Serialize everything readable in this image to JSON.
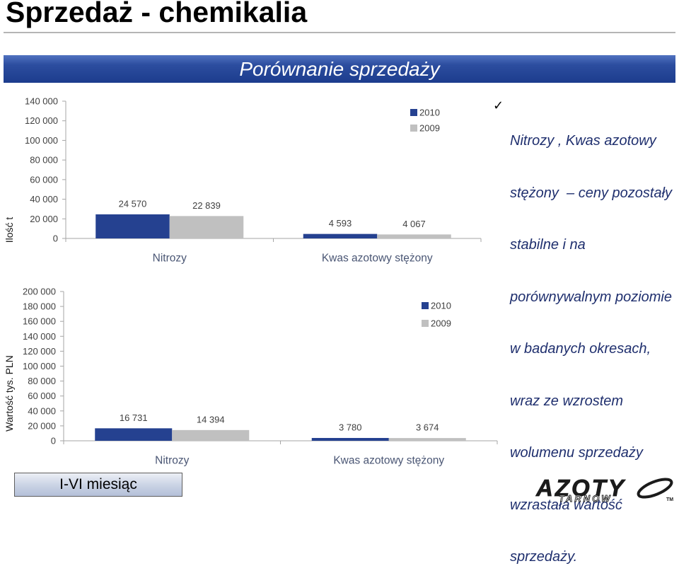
{
  "title": "Sprzedaż - chemikalia",
  "banner": {
    "text": "Porównanie sprzedaży"
  },
  "bullet": {
    "icon": "checkmark-icon",
    "check": "✓",
    "lines": [
      "Nitrozy , Kwas azotowy",
      "stężony  – ceny pozostały",
      "stabilne i na",
      "porównywalnym poziomie",
      "w badanych okresach,",
      "wraz ze wzrostem",
      "wolumenu sprzedaży",
      "wzrastała wartość",
      "sprzedaży."
    ]
  },
  "period_box": {
    "label": "I-VI miesiąc"
  },
  "logo": {
    "main": "AZOTY",
    "sub": "TARNÓW",
    "tm": "TM"
  },
  "colors": {
    "banner": "#2c4d9f",
    "bullet_text": "#1f2f6e",
    "series_2010": "#254190",
    "series_2009": "#c0c0c0"
  },
  "chart_data": [
    {
      "type": "bar",
      "ylabel": "Ilość t",
      "categories": [
        "Nitrozy",
        "Kwas azotowy stężony"
      ],
      "ylim": [
        0,
        140000
      ],
      "yticks": [
        0,
        20000,
        40000,
        60000,
        80000,
        100000,
        120000,
        140000
      ],
      "ytick_labels": [
        "0",
        "20 000",
        "40 000",
        "60 000",
        "80 000",
        "100 000",
        "120 000",
        "140 000"
      ],
      "series": [
        {
          "name": "2010",
          "values": [
            24570,
            4593
          ],
          "labels": [
            "24 570",
            "4 593"
          ],
          "color": "#254190"
        },
        {
          "name": "2009",
          "values": [
            22839,
            4067
          ],
          "labels": [
            "22 839",
            "4 067"
          ],
          "color": "#c0c0c0"
        }
      ],
      "legend": "top-right",
      "grid": false
    },
    {
      "type": "bar",
      "ylabel": "Wartość tys. PLN",
      "categories": [
        "Nitrozy",
        "Kwas azotowy stężony"
      ],
      "ylim": [
        0,
        200000
      ],
      "yticks": [
        0,
        20000,
        40000,
        60000,
        80000,
        100000,
        120000,
        140000,
        160000,
        180000,
        200000
      ],
      "ytick_labels": [
        "0",
        "20 000",
        "40 000",
        "60 000",
        "80 000",
        "100 000",
        "120 000",
        "140 000",
        "160 000",
        "180 000",
        "200 000"
      ],
      "series": [
        {
          "name": "2010",
          "values": [
            16731,
            3780
          ],
          "labels": [
            "16 731",
            "3 780"
          ],
          "color": "#254190"
        },
        {
          "name": "2009",
          "values": [
            14394,
            3674
          ],
          "labels": [
            "14 394",
            "3 674"
          ],
          "color": "#c0c0c0"
        }
      ],
      "legend": "top-right",
      "grid": false
    }
  ]
}
